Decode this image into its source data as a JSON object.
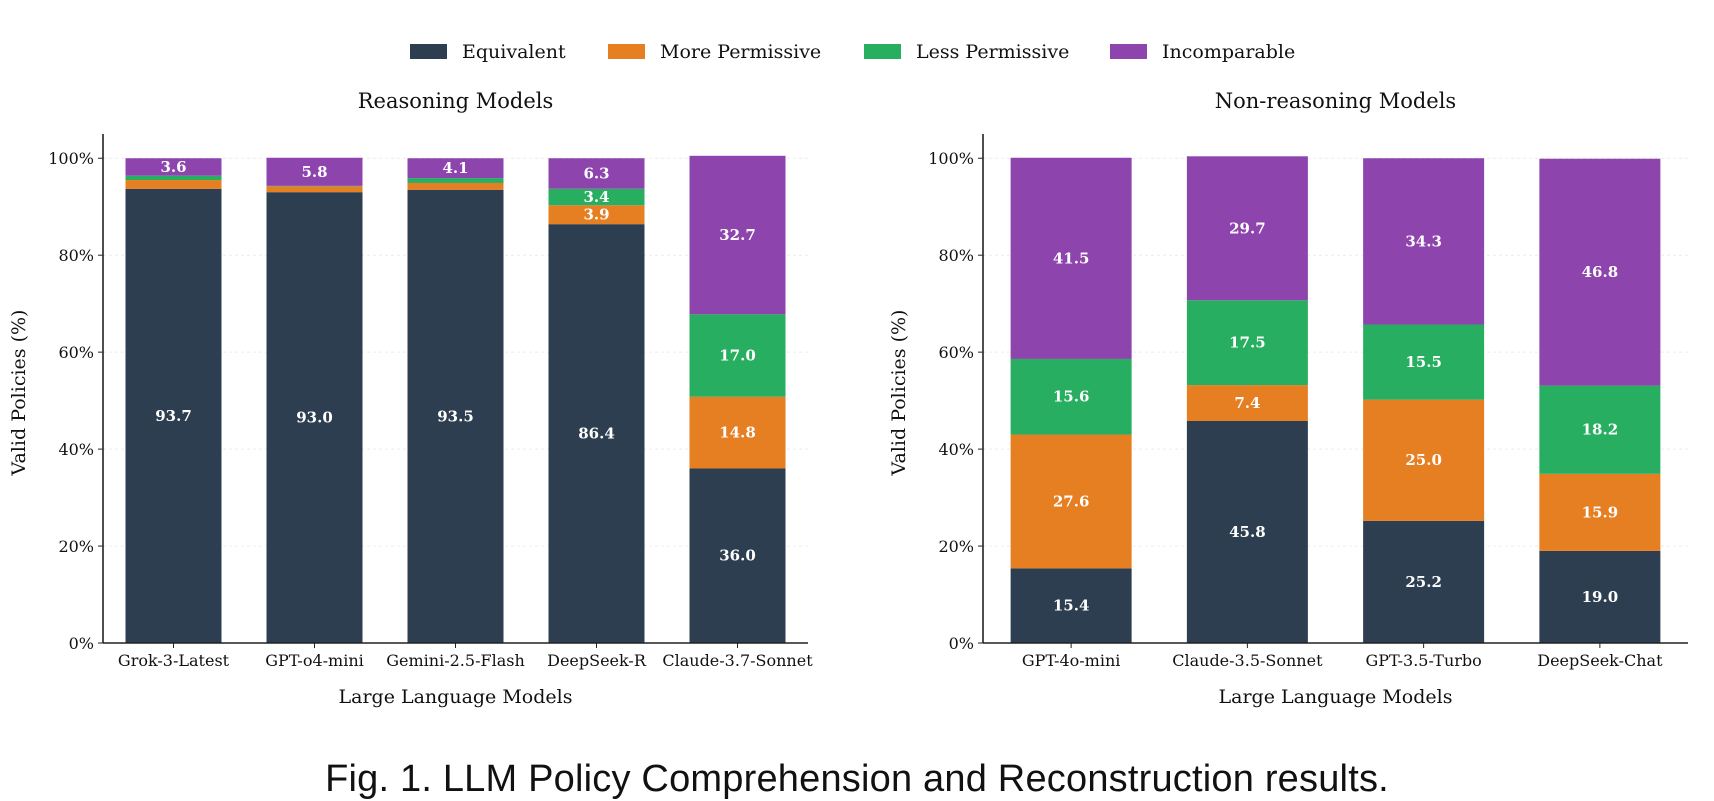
{
  "colors": {
    "Equivalent": "#2c3e50",
    "More Permissive": "#e67e22",
    "Less Permissive": "#27ae60",
    "Incomparable": "#8e44ad"
  },
  "legend": [
    "Equivalent",
    "More Permissive",
    "Less Permissive",
    "Incomparable"
  ],
  "caption": "Fig. 1.  LLM Policy Comprehension and Reconstruction results.",
  "chart_data": [
    {
      "type": "bar",
      "stacked": true,
      "title": "Reasoning Models",
      "xlabel": "Large Language Models",
      "ylabel": "Valid Policies (%)",
      "ylim": [
        0,
        105
      ],
      "yticks": [
        "0%",
        "20%",
        "40%",
        "60%",
        "80%",
        "100%"
      ],
      "categories": [
        "Grok-3-Latest",
        "GPT-o4-mini",
        "Gemini-2.5-Flash",
        "DeepSeek-R",
        "Claude-3.7-Sonnet"
      ],
      "series": [
        {
          "name": "Equivalent",
          "values": [
            93.7,
            93.0,
            93.5,
            86.4,
            36.0
          ]
        },
        {
          "name": "More Permissive",
          "values": [
            1.8,
            1.2,
            1.4,
            3.9,
            14.8
          ]
        },
        {
          "name": "Less Permissive",
          "values": [
            0.9,
            0.1,
            1.0,
            3.4,
            17.0
          ]
        },
        {
          "name": "Incomparable",
          "values": [
            3.6,
            5.8,
            4.1,
            6.3,
            32.7
          ]
        }
      ],
      "data_labels": [
        [
          "93.7",
          "",
          "",
          "3.6"
        ],
        [
          "93.0",
          "",
          "",
          "5.8"
        ],
        [
          "93.5",
          "",
          "",
          "4.1"
        ],
        [
          "86.4",
          "3.9",
          "3.4",
          "6.3"
        ],
        [
          "36.0",
          "14.8",
          "17.0",
          "32.7"
        ]
      ]
    },
    {
      "type": "bar",
      "stacked": true,
      "title": "Non-reasoning Models",
      "xlabel": "Large Language Models",
      "ylabel": "Valid Policies (%)",
      "ylim": [
        0,
        105
      ],
      "yticks": [
        "0%",
        "20%",
        "40%",
        "60%",
        "80%",
        "100%"
      ],
      "categories": [
        "GPT-4o-mini",
        "Claude-3.5-Sonnet",
        "GPT-3.5-Turbo",
        "DeepSeek-Chat"
      ],
      "series": [
        {
          "name": "Equivalent",
          "values": [
            15.4,
            45.8,
            25.2,
            19.0
          ]
        },
        {
          "name": "More Permissive",
          "values": [
            27.6,
            7.4,
            25.0,
            15.9
          ]
        },
        {
          "name": "Less Permissive",
          "values": [
            15.6,
            17.5,
            15.5,
            18.2
          ]
        },
        {
          "name": "Incomparable",
          "values": [
            41.5,
            29.7,
            34.3,
            46.8
          ]
        }
      ],
      "data_labels": [
        [
          "15.4",
          "27.6",
          "15.6",
          "41.5"
        ],
        [
          "45.8",
          "7.4",
          "17.5",
          "29.7"
        ],
        [
          "25.2",
          "25.0",
          "15.5",
          "34.3"
        ],
        [
          "19.0",
          "15.9",
          "18.2",
          "46.8"
        ]
      ]
    }
  ]
}
